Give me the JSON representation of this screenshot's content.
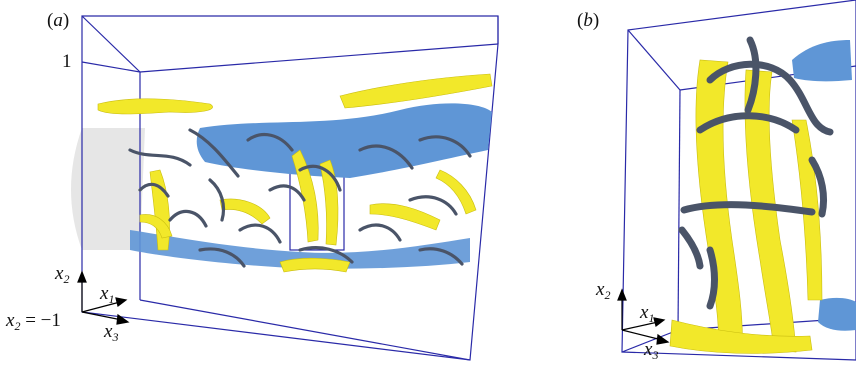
{
  "figure": {
    "panel_a": {
      "tag": "(a)",
      "tag_open": "(",
      "tag_letter": "a",
      "tag_close": ")",
      "axis_top_value": "1",
      "axis_bottom_text": "x₂ = −1",
      "axis_labels": {
        "vertical": "x",
        "vertical_sub": "2",
        "streamwise": "x",
        "streamwise_sub": "1",
        "spanwise": "x",
        "spanwise_sub": "3"
      },
      "bottom_prefix": "x",
      "bottom_sub": "2",
      "bottom_suffix": " = −1"
    },
    "panel_b": {
      "tag_open": "(",
      "tag_letter": "b",
      "tag_close": ")",
      "axis_labels": {
        "vertical": "x",
        "vertical_sub": "2",
        "streamwise": "x",
        "streamwise_sub": "1",
        "spanwise": "x",
        "spanwise_sub": "3"
      }
    },
    "colors": {
      "box_edge": "#2a2aa8",
      "vortex_yellow": "#f2e82a",
      "vortex_dark": "#4a5468",
      "low_speed_blue": "#5f96d6",
      "wall_grey": "#e2e2e2"
    }
  }
}
